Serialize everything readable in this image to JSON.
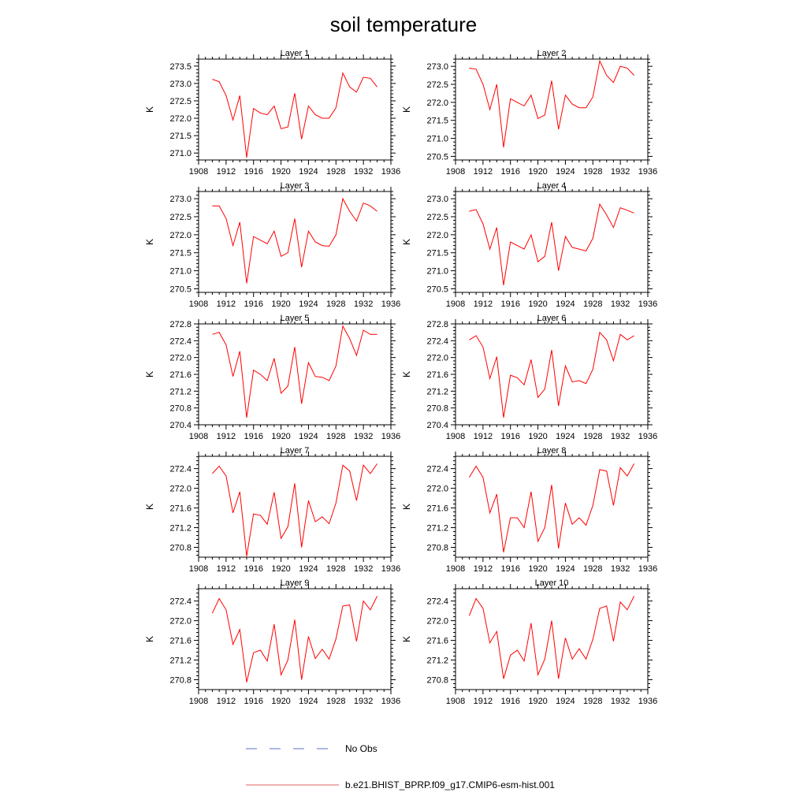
{
  "figure": {
    "title": "soil temperature",
    "legend": {
      "obs_label": "No Obs",
      "obs_color": "#5b6fc7",
      "model_label": "b.e21.BHIST_BPRP.f09_g17.CMIP6-esm-hist.001",
      "model_color": "#e06060"
    },
    "line_color": "#ff0000"
  },
  "chart_data": [
    {
      "type": "line",
      "title": "Layer 1",
      "ylabel": "K",
      "xlim": [
        1908,
        1936
      ],
      "ylim": [
        270.8,
        273.7
      ],
      "xticks": [
        "1908",
        "1912",
        "1916",
        "1920",
        "1924",
        "1928",
        "1932",
        "1936"
      ],
      "yticks": [
        "271.0",
        "271.5",
        "272.0",
        "272.5",
        "273.0",
        "273.5"
      ],
      "x": [
        1910,
        1911,
        1912,
        1913,
        1914,
        1915,
        1916,
        1917,
        1918,
        1919,
        1920,
        1921,
        1922,
        1923,
        1924,
        1925,
        1926,
        1927,
        1928,
        1929,
        1930,
        1931,
        1932,
        1933,
        1934
      ],
      "series": [
        {
          "values": [
            273.12,
            273.05,
            272.65,
            271.95,
            272.65,
            270.87,
            272.28,
            272.15,
            272.1,
            272.35,
            271.7,
            271.75,
            272.72,
            271.4,
            272.35,
            272.1,
            272.0,
            272.0,
            272.3,
            273.3,
            272.9,
            272.75,
            273.18,
            273.15,
            272.9
          ]
        }
      ]
    },
    {
      "type": "line",
      "title": "Layer 2",
      "ylabel": "K",
      "xlim": [
        1908,
        1936
      ],
      "ylim": [
        270.4,
        273.2
      ],
      "xticks": [
        "1908",
        "1912",
        "1916",
        "1920",
        "1924",
        "1928",
        "1932",
        "1936"
      ],
      "yticks": [
        "270.5",
        "271.0",
        "271.5",
        "272.0",
        "272.5",
        "273.0"
      ],
      "x": [
        1910,
        1911,
        1912,
        1913,
        1914,
        1915,
        1916,
        1917,
        1918,
        1919,
        1920,
        1921,
        1922,
        1923,
        1924,
        1925,
        1926,
        1927,
        1928,
        1929,
        1930,
        1931,
        1932,
        1933,
        1934
      ],
      "series": [
        {
          "values": [
            272.95,
            272.92,
            272.5,
            271.8,
            272.5,
            270.75,
            272.1,
            272.0,
            271.9,
            272.2,
            271.55,
            271.65,
            272.6,
            271.25,
            272.2,
            271.95,
            271.85,
            271.85,
            272.15,
            273.15,
            272.75,
            272.55,
            273.0,
            272.95,
            272.75
          ]
        }
      ]
    },
    {
      "type": "line",
      "title": "Layer 3",
      "ylabel": "K",
      "xlim": [
        1908,
        1936
      ],
      "ylim": [
        270.4,
        273.2
      ],
      "xticks": [
        "1908",
        "1912",
        "1916",
        "1920",
        "1924",
        "1928",
        "1932",
        "1936"
      ],
      "yticks": [
        "270.5",
        "271.0",
        "271.5",
        "272.0",
        "272.5",
        "273.0"
      ],
      "x": [
        1910,
        1911,
        1912,
        1913,
        1914,
        1915,
        1916,
        1917,
        1918,
        1919,
        1920,
        1921,
        1922,
        1923,
        1924,
        1925,
        1926,
        1927,
        1928,
        1929,
        1930,
        1931,
        1932,
        1933,
        1934
      ],
      "series": [
        {
          "values": [
            272.8,
            272.8,
            272.45,
            271.7,
            272.35,
            270.65,
            271.95,
            271.85,
            271.75,
            272.1,
            271.4,
            271.5,
            272.45,
            271.1,
            272.1,
            271.8,
            271.7,
            271.68,
            272.0,
            273.0,
            272.65,
            272.38,
            272.88,
            272.8,
            272.65
          ]
        }
      ]
    },
    {
      "type": "line",
      "title": "Layer 4",
      "ylabel": "K",
      "xlim": [
        1908,
        1936
      ],
      "ylim": [
        270.4,
        273.2
      ],
      "xticks": [
        "1908",
        "1912",
        "1916",
        "1920",
        "1924",
        "1928",
        "1932",
        "1936"
      ],
      "yticks": [
        "270.5",
        "271.0",
        "271.5",
        "272.0",
        "272.5",
        "273.0"
      ],
      "x": [
        1910,
        1911,
        1912,
        1913,
        1914,
        1915,
        1916,
        1917,
        1918,
        1919,
        1920,
        1921,
        1922,
        1923,
        1924,
        1925,
        1926,
        1927,
        1928,
        1929,
        1930,
        1931,
        1932,
        1933,
        1934
      ],
      "series": [
        {
          "values": [
            272.65,
            272.7,
            272.3,
            271.6,
            272.2,
            270.6,
            271.8,
            271.7,
            271.6,
            272.0,
            271.25,
            271.4,
            272.35,
            271.0,
            271.95,
            271.65,
            271.6,
            271.55,
            271.9,
            272.85,
            272.55,
            272.2,
            272.75,
            272.68,
            272.6
          ]
        }
      ]
    },
    {
      "type": "line",
      "title": "Layer 5",
      "ylabel": "K",
      "xlim": [
        1908,
        1936
      ],
      "ylim": [
        270.4,
        272.8
      ],
      "xticks": [
        "1908",
        "1912",
        "1916",
        "1920",
        "1924",
        "1928",
        "1932",
        "1936"
      ],
      "yticks": [
        "270.4",
        "270.8",
        "271.2",
        "271.6",
        "272.0",
        "272.4",
        "272.8"
      ],
      "x": [
        1910,
        1911,
        1912,
        1913,
        1914,
        1915,
        1916,
        1917,
        1918,
        1919,
        1920,
        1921,
        1922,
        1923,
        1924,
        1925,
        1926,
        1927,
        1928,
        1929,
        1930,
        1931,
        1932,
        1933,
        1934
      ],
      "series": [
        {
          "values": [
            272.55,
            272.6,
            272.3,
            271.55,
            272.15,
            270.57,
            271.7,
            271.6,
            271.45,
            271.98,
            271.15,
            271.32,
            272.25,
            270.9,
            271.88,
            271.55,
            271.53,
            271.45,
            271.8,
            272.75,
            272.45,
            272.05,
            272.65,
            272.55,
            272.55
          ]
        }
      ]
    },
    {
      "type": "line",
      "title": "Layer 6",
      "ylabel": "K",
      "xlim": [
        1908,
        1936
      ],
      "ylim": [
        270.4,
        272.8
      ],
      "xticks": [
        "1908",
        "1912",
        "1916",
        "1920",
        "1924",
        "1928",
        "1932",
        "1936"
      ],
      "yticks": [
        "270.4",
        "270.8",
        "271.2",
        "271.6",
        "272.0",
        "272.4",
        "272.8"
      ],
      "x": [
        1910,
        1911,
        1912,
        1913,
        1914,
        1915,
        1916,
        1917,
        1918,
        1919,
        1920,
        1921,
        1922,
        1923,
        1924,
        1925,
        1926,
        1927,
        1928,
        1929,
        1930,
        1931,
        1932,
        1933,
        1934
      ],
      "series": [
        {
          "values": [
            272.42,
            272.52,
            272.25,
            271.5,
            272.02,
            270.57,
            271.58,
            271.52,
            271.35,
            271.95,
            271.05,
            271.25,
            272.18,
            270.85,
            271.8,
            271.42,
            271.45,
            271.38,
            271.72,
            272.6,
            272.42,
            271.92,
            272.55,
            272.42,
            272.52
          ]
        }
      ]
    },
    {
      "type": "line",
      "title": "Layer 7",
      "ylabel": "K",
      "xlim": [
        1908,
        1936
      ],
      "ylim": [
        270.6,
        272.65
      ],
      "xticks": [
        "1908",
        "1912",
        "1916",
        "1920",
        "1924",
        "1928",
        "1932",
        "1936"
      ],
      "yticks": [
        "270.8",
        "271.2",
        "271.6",
        "272.0",
        "272.4"
      ],
      "x": [
        1910,
        1911,
        1912,
        1913,
        1914,
        1915,
        1916,
        1917,
        1918,
        1919,
        1920,
        1921,
        1922,
        1923,
        1924,
        1925,
        1926,
        1927,
        1928,
        1929,
        1930,
        1931,
        1932,
        1933,
        1934
      ],
      "series": [
        {
          "values": [
            272.3,
            272.45,
            272.25,
            271.5,
            271.93,
            270.62,
            271.48,
            271.45,
            271.27,
            271.92,
            270.98,
            271.22,
            272.1,
            270.8,
            271.75,
            271.32,
            271.42,
            271.28,
            271.7,
            272.47,
            272.35,
            271.75,
            272.47,
            272.3,
            272.5
          ]
        }
      ]
    },
    {
      "type": "line",
      "title": "Layer 8",
      "ylabel": "K",
      "xlim": [
        1908,
        1936
      ],
      "ylim": [
        270.6,
        272.65
      ],
      "xticks": [
        "1908",
        "1912",
        "1916",
        "1920",
        "1924",
        "1928",
        "1932",
        "1936"
      ],
      "yticks": [
        "270.8",
        "271.2",
        "271.6",
        "272.0",
        "272.4"
      ],
      "x": [
        1910,
        1911,
        1912,
        1913,
        1914,
        1915,
        1916,
        1917,
        1918,
        1919,
        1920,
        1921,
        1922,
        1923,
        1924,
        1925,
        1926,
        1927,
        1928,
        1929,
        1930,
        1931,
        1932,
        1933,
        1934
      ],
      "series": [
        {
          "values": [
            272.22,
            272.45,
            272.22,
            271.5,
            271.88,
            270.7,
            271.4,
            271.4,
            271.2,
            271.93,
            270.92,
            271.2,
            272.07,
            270.78,
            271.7,
            271.27,
            271.4,
            271.25,
            271.65,
            272.38,
            272.35,
            271.65,
            272.42,
            272.25,
            272.5
          ]
        }
      ]
    },
    {
      "type": "line",
      "title": "Layer 9",
      "ylabel": "K",
      "xlim": [
        1908,
        1936
      ],
      "ylim": [
        270.6,
        272.65
      ],
      "xticks": [
        "1908",
        "1912",
        "1916",
        "1920",
        "1924",
        "1928",
        "1932",
        "1936"
      ],
      "yticks": [
        "270.8",
        "271.2",
        "271.6",
        "272.0",
        "272.4"
      ],
      "x": [
        1910,
        1911,
        1912,
        1913,
        1914,
        1915,
        1916,
        1917,
        1918,
        1919,
        1920,
        1921,
        1922,
        1923,
        1924,
        1925,
        1926,
        1927,
        1928,
        1929,
        1930,
        1931,
        1932,
        1933,
        1934
      ],
      "series": [
        {
          "values": [
            272.15,
            272.45,
            272.22,
            271.52,
            271.82,
            270.75,
            271.35,
            271.4,
            271.18,
            271.93,
            270.9,
            271.2,
            272.02,
            270.8,
            271.68,
            271.23,
            271.42,
            271.22,
            271.63,
            272.3,
            272.32,
            271.58,
            272.4,
            272.22,
            272.5
          ]
        }
      ]
    },
    {
      "type": "line",
      "title": "Layer 10",
      "ylabel": "K",
      "xlim": [
        1908,
        1936
      ],
      "ylim": [
        270.6,
        272.65
      ],
      "xticks": [
        "1908",
        "1912",
        "1916",
        "1920",
        "1924",
        "1928",
        "1932",
        "1936"
      ],
      "yticks": [
        "270.8",
        "271.2",
        "271.6",
        "272.0",
        "272.4"
      ],
      "x": [
        1910,
        1911,
        1912,
        1913,
        1914,
        1915,
        1916,
        1917,
        1918,
        1919,
        1920,
        1921,
        1922,
        1923,
        1924,
        1925,
        1926,
        1927,
        1928,
        1929,
        1930,
        1931,
        1932,
        1933,
        1934
      ],
      "series": [
        {
          "values": [
            272.1,
            272.45,
            272.25,
            271.55,
            271.78,
            270.82,
            271.3,
            271.4,
            271.18,
            271.95,
            270.9,
            271.22,
            272.0,
            270.82,
            271.65,
            271.22,
            271.43,
            271.22,
            271.62,
            272.25,
            272.3,
            271.58,
            272.38,
            272.22,
            272.5
          ]
        }
      ]
    }
  ]
}
